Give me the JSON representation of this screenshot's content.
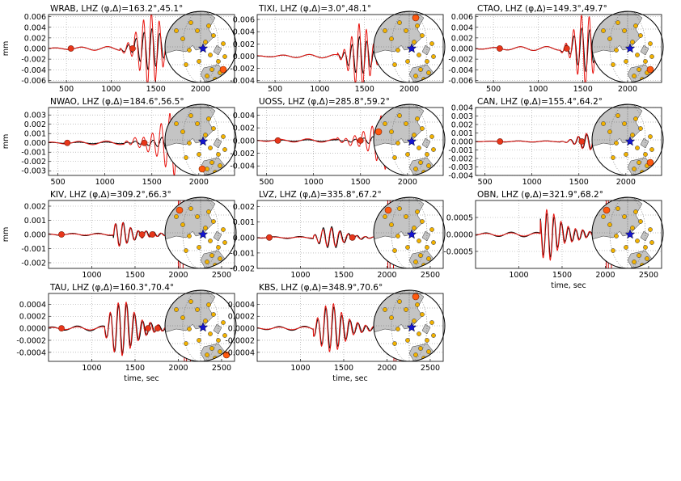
{
  "figure": {
    "ylabel": "mm",
    "xlabel": "time, sec"
  },
  "colors": {
    "observed": "#000000",
    "synthetic": "#e8140f",
    "phase_dot": "#e8361a",
    "station": "#ff5a10",
    "epicenter": "#1515d0",
    "land": "#c4c4c4",
    "ocean": "#ffffff",
    "site": "#f2b200",
    "grid": "#9a9a9a",
    "phase_line": "#cc0000"
  },
  "chart_data": [
    {
      "type": "line",
      "title": "WRAB, LHZ (φ,Δ)=163.2°,45.1°",
      "station": "WRAB",
      "component": "LHZ",
      "azimuth_deg": 163.2,
      "distance_deg": 45.1,
      "xlim": [
        300,
        2380
      ],
      "xticks": [
        "500",
        "1000",
        "1500",
        "2000"
      ],
      "xtick_values": [
        500,
        1000,
        1500,
        2000
      ],
      "ylim": [
        -0.0064,
        0.0064
      ],
      "yticks": [
        "0.006",
        "0.004",
        "0.002",
        "0.000",
        "-0.002",
        "-0.004",
        "-0.006"
      ],
      "ytick_values": [
        0.006,
        0.004,
        0.002,
        0,
        -0.002,
        -0.004,
        -0.006
      ],
      "amplitude": 0.0035,
      "synthetic_amplitude": 0.0062,
      "wave_t0": 1100,
      "wave_t1": 1800,
      "wave_peak": 1440,
      "wave_period": 90,
      "phase_dots": [
        550,
        1240
      ],
      "phase_lines": [],
      "show_xlabel": false,
      "show_ylabel": true,
      "map_station_position": "lower-right"
    },
    {
      "type": "line",
      "title": "TIXI, LHZ (φ,Δ)=3.0°,48.1°",
      "station": "TIXI",
      "component": "LHZ",
      "azimuth_deg": 3.0,
      "distance_deg": 48.1,
      "xlim": [
        300,
        2380
      ],
      "xticks": [
        "500",
        "1000",
        "1500",
        "2000"
      ],
      "xtick_values": [
        500,
        1000,
        1500,
        2000
      ],
      "ylim": [
        -0.0043,
        0.0068
      ],
      "yticks": [
        "0.006",
        "0.004",
        "0.002",
        "0.000",
        "-0.002",
        "-0.004"
      ],
      "ytick_values": [
        0.006,
        0.004,
        0.002,
        0,
        -0.002,
        -0.004
      ],
      "amplitude": 0.0028,
      "synthetic_amplitude": 0.0048,
      "wave_t0": 1200,
      "wave_t1": 1800,
      "wave_peak": 1450,
      "wave_period": 85,
      "phase_dots": [],
      "phase_lines": [],
      "show_xlabel": false,
      "show_ylabel": false,
      "map_station_position": "top"
    },
    {
      "type": "line",
      "title": "CTAO, LHZ (φ,Δ)=149.3°,49.7°",
      "station": "CTAO",
      "component": "LHZ",
      "azimuth_deg": 149.3,
      "distance_deg": 49.7,
      "xlim": [
        300,
        2380
      ],
      "xticks": [
        "500",
        "1000",
        "1500",
        "2000"
      ],
      "xtick_values": [
        500,
        1000,
        1500,
        2000
      ],
      "ylim": [
        -0.0064,
        0.0064
      ],
      "yticks": [
        "0.006",
        "0.004",
        "0.002",
        "0.000",
        "-0.002",
        "-0.004",
        "-0.006"
      ],
      "ytick_values": [
        0.006,
        0.004,
        0.002,
        0,
        -0.002,
        -0.004,
        -0.006
      ],
      "amplitude": 0.0038,
      "synthetic_amplitude": 0.0062,
      "wave_t0": 1250,
      "wave_t1": 1850,
      "wave_peak": 1520,
      "wave_period": 90,
      "phase_dots": [
        570,
        1320
      ],
      "phase_lines": [],
      "show_xlabel": false,
      "show_ylabel": false,
      "map_station_position": "lower-right"
    },
    {
      "type": "line",
      "title": "NWAO, LHZ (φ,Δ)=184.6°,56.5°",
      "station": "NWAO",
      "component": "LHZ",
      "azimuth_deg": 184.6,
      "distance_deg": 56.5,
      "xlim": [
        400,
        2380
      ],
      "xticks": [
        "500",
        "1000",
        "1500",
        "2000"
      ],
      "xtick_values": [
        500,
        1000,
        1500,
        2000
      ],
      "ylim": [
        -0.0035,
        0.0038
      ],
      "yticks": [
        "0.003",
        "0.002",
        "0.001",
        "0.000",
        "-0.001",
        "-0.002",
        "-0.003"
      ],
      "ytick_values": [
        0.003,
        0.002,
        0.001,
        0,
        -0.001,
        -0.002,
        -0.003
      ],
      "amplitude": 0.0009,
      "synthetic_amplitude": 0.0034,
      "wave_t0": 1200,
      "wave_t1": 1950,
      "wave_peak": 1760,
      "wave_period": 95,
      "phase_dots": [
        600,
        1420
      ],
      "phase_lines": [],
      "show_xlabel": false,
      "show_ylabel": true,
      "map_station_position": "bottom"
    },
    {
      "type": "line",
      "title": "UOSS, LHZ (φ,Δ)=285.8°,59.2°",
      "station": "UOSS",
      "component": "LHZ",
      "azimuth_deg": 285.8,
      "distance_deg": 59.2,
      "xlim": [
        400,
        2380
      ],
      "xticks": [
        "500",
        "1000",
        "1500",
        "2000"
      ],
      "xtick_values": [
        500,
        1000,
        1500,
        2000
      ],
      "ylim": [
        -0.0055,
        0.0052
      ],
      "yticks": [
        "0.004",
        "0.002",
        "0.000",
        "-0.002",
        "-0.004"
      ],
      "ytick_values": [
        0.004,
        0.002,
        0,
        -0.002,
        -0.004
      ],
      "amplitude": 0.0012,
      "synthetic_amplitude": 0.0046,
      "wave_t0": 1250,
      "wave_t1": 2000,
      "wave_peak": 1810,
      "wave_period": 95,
      "phase_dots": [
        620,
        1500
      ],
      "phase_lines": [],
      "show_xlabel": false,
      "show_ylabel": false,
      "map_station_position": "left"
    },
    {
      "type": "line",
      "title": "CAN, LHZ (φ,Δ)=155.4°,64.2°",
      "station": "CAN",
      "component": "LHZ",
      "azimuth_deg": 155.4,
      "distance_deg": 64.2,
      "xlim": [
        400,
        2380
      ],
      "xticks": [
        "500",
        "1000",
        "1500",
        "2000"
      ],
      "xtick_values": [
        500,
        1000,
        1500,
        2000
      ],
      "ylim": [
        -0.004,
        0.004
      ],
      "yticks": [
        "0.004",
        "0.003",
        "0.002",
        "0.001",
        "0.000",
        "-0.001",
        "-0.002",
        "-0.003",
        "-0.004"
      ],
      "ytick_values": [
        0.004,
        0.003,
        0.002,
        0.001,
        0,
        -0.001,
        -0.002,
        -0.003,
        -0.004
      ],
      "amplitude": 0.0008,
      "synthetic_amplitude": 0.0009,
      "wave_t0": 1300,
      "wave_t1": 1900,
      "wave_peak": 1600,
      "wave_period": 90,
      "phase_dots": [
        660,
        1530
      ],
      "phase_lines": [
        1960,
        1985,
        2030
      ],
      "show_xlabel": false,
      "show_ylabel": false,
      "map_station_position": "lower-right"
    },
    {
      "type": "line",
      "title": "KIV, LHZ (φ,Δ)=309.2°,66.3°",
      "station": "KIV",
      "component": "LHZ",
      "azimuth_deg": 309.2,
      "distance_deg": 66.3,
      "xlim": [
        500,
        2650
      ],
      "xticks": [
        "1000",
        "1500",
        "2000",
        "2500"
      ],
      "xtick_values": [
        1000,
        1500,
        2000,
        2500
      ],
      "ylim": [
        -0.0024,
        0.0024
      ],
      "yticks": [
        "0.002",
        "0.001",
        "0.000",
        "-0.001",
        "-0.002"
      ],
      "ytick_values": [
        0.002,
        0.001,
        0,
        -0.001,
        -0.002
      ],
      "amplitude": 0.0009,
      "synthetic_amplitude": 0.0009,
      "wave_t0": 1250,
      "wave_t1": 1900,
      "wave_peak": 1310,
      "wave_period": 90,
      "phase_dots": [
        650,
        1580,
        1700
      ],
      "phase_lines": [
        2000,
        2020,
        2055
      ],
      "show_xlabel": false,
      "show_ylabel": true,
      "map_station_position": "top-left"
    },
    {
      "type": "line",
      "title": "LVZ, LHZ (φ,Δ)=335.8°,67.2°",
      "station": "LVZ",
      "component": "LHZ",
      "azimuth_deg": 335.8,
      "distance_deg": 67.2,
      "xlim": [
        500,
        2650
      ],
      "xticks": [
        "1000",
        "1500",
        "2000",
        "2500"
      ],
      "xtick_values": [
        1000,
        1500,
        2000,
        2500
      ],
      "ylim": [
        -0.002,
        0.0024
      ],
      "yticks": [
        "0.002",
        "0.001",
        "0.000",
        "-0.001",
        "-0.002"
      ],
      "ytick_values": [
        0.002,
        0.001,
        0,
        -0.001,
        -0.002
      ],
      "amplitude": 0.0007,
      "synthetic_amplitude": 0.0006,
      "wave_t0": 1150,
      "wave_t1": 1850,
      "wave_peak": 1330,
      "wave_period": 100,
      "phase_dots": [
        640,
        1600
      ],
      "phase_lines": [
        2010,
        2035,
        2075
      ],
      "show_xlabel": false,
      "show_ylabel": false,
      "map_station_position": "top-left"
    },
    {
      "type": "line",
      "title": "OBN, LHZ (φ,Δ)=321.9°,68.2°",
      "station": "OBN",
      "component": "LHZ",
      "azimuth_deg": 321.9,
      "distance_deg": 68.2,
      "xlim": [
        500,
        2650
      ],
      "xticks": [
        "1000",
        "1500",
        "2000",
        "2500"
      ],
      "xtick_values": [
        1000,
        1500,
        2000,
        2500
      ],
      "ylim": [
        -0.001,
        0.001
      ],
      "yticks": [
        "0.0005",
        "0.0000",
        "-0.0005"
      ],
      "ytick_values": [
        0.0005,
        0,
        -0.0005
      ],
      "amplitude": 0.0007,
      "synthetic_amplitude": 0.0008,
      "wave_t0": 1250,
      "wave_t1": 1900,
      "wave_peak": 1320,
      "wave_period": 85,
      "phase_dots": [],
      "phase_lines": [
        2010,
        2035,
        2070
      ],
      "show_xlabel": true,
      "show_ylabel": false,
      "map_station_position": "top-left"
    },
    {
      "type": "line",
      "title": "TAU, LHZ (φ,Δ)=160.3°,70.4°",
      "station": "TAU",
      "component": "LHZ",
      "azimuth_deg": 160.3,
      "distance_deg": 70.4,
      "xlim": [
        500,
        2650
      ],
      "xticks": [
        "1000",
        "1500",
        "2000",
        "2500"
      ],
      "xtick_values": [
        1000,
        1500,
        2000,
        2500
      ],
      "ylim": [
        -0.00055,
        0.00058
      ],
      "yticks": [
        "0.0004",
        "0.0002",
        "0.0000",
        "-0.0002",
        "-0.0004"
      ],
      "ytick_values": [
        0.0004,
        0.0002,
        0,
        -0.0002,
        -0.0004
      ],
      "amplitude": 0.00042,
      "synthetic_amplitude": 0.00045,
      "wave_t0": 1150,
      "wave_t1": 1900,
      "wave_peak": 1330,
      "wave_period": 95,
      "phase_dots": [
        650,
        1650,
        1760
      ],
      "phase_lines": [
        2070,
        2095,
        2140
      ],
      "show_xlabel": true,
      "show_ylabel": false,
      "map_station_position": "bottom-right"
    },
    {
      "type": "line",
      "title": "KBS, LHZ (φ,Δ)=348.9°,70.6°",
      "station": "KBS",
      "component": "LHZ",
      "azimuth_deg": 348.9,
      "distance_deg": 70.6,
      "xlim": [
        500,
        2650
      ],
      "xticks": [
        "1000",
        "1500",
        "2000",
        "2500"
      ],
      "xtick_values": [
        1000,
        1500,
        2000,
        2500
      ],
      "ylim": [
        -0.00055,
        0.00058
      ],
      "yticks": [
        "0.0004",
        "0.0002",
        "0.0000",
        "-0.0002",
        "-0.0004"
      ],
      "ytick_values": [
        0.0004,
        0.0002,
        0,
        -0.0002,
        -0.0004
      ],
      "amplitude": 0.00035,
      "synthetic_amplitude": 0.0004,
      "wave_t0": 1150,
      "wave_t1": 1900,
      "wave_peak": 1340,
      "wave_period": 95,
      "phase_dots": [],
      "phase_lines": [
        2080,
        2105,
        2150
      ],
      "show_xlabel": true,
      "show_ylabel": false,
      "map_station_position": "top"
    }
  ]
}
